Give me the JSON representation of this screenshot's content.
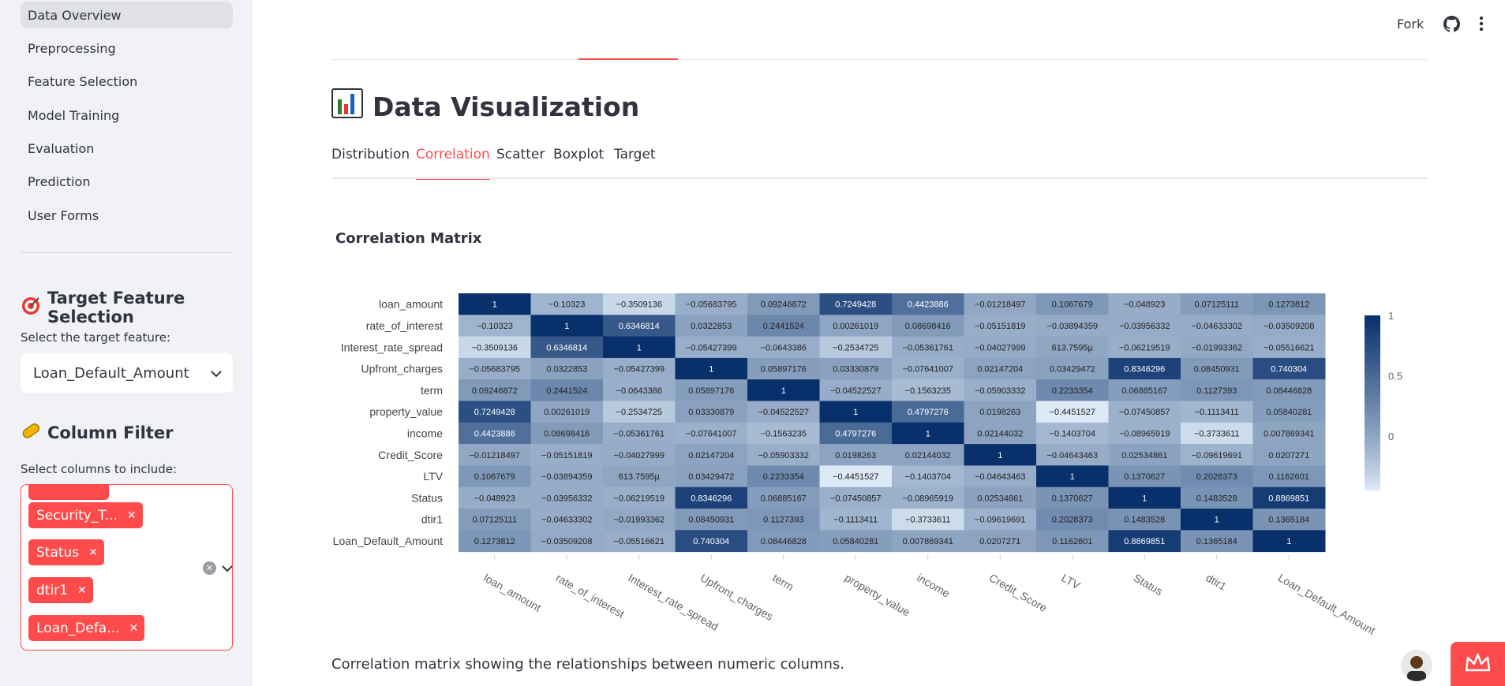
{
  "sidebar": {
    "nav": [
      {
        "label": "Data Overview",
        "active": true
      },
      {
        "label": "Preprocessing"
      },
      {
        "label": "Feature Selection"
      },
      {
        "label": "Model Training"
      },
      {
        "label": "Evaluation"
      },
      {
        "label": "Prediction"
      },
      {
        "label": "User Forms"
      }
    ],
    "target_header": "Target Feature Selection",
    "target_icon": "target-icon",
    "target_label": "Select the target feature:",
    "target_value": "Loan_Default_Amount",
    "filter_header": "Column Filter",
    "filter_icon": "pill-icon",
    "filter_label": "Select columns to include:",
    "chips": [
      "Security_T...",
      "Status",
      "dtir1",
      "Loan_Defa..."
    ]
  },
  "topbar": {
    "fork": "Fork",
    "github_icon": "github-icon",
    "menu_icon": "kebab-menu-icon"
  },
  "main": {
    "title": "Data Visualization",
    "title_icon": "bar-chart-icon",
    "tabs": [
      "Distribution",
      "Correlation",
      "Scatter",
      "Boxplot",
      "Target"
    ],
    "active_tab": "Correlation",
    "section_title": "Correlation Matrix",
    "caption": "Correlation matrix showing the relationships between numeric columns."
  },
  "chart_data": {
    "type": "heatmap",
    "title": "Correlation Matrix",
    "rows": [
      "loan_amount",
      "rate_of_interest",
      "Interest_rate_spread",
      "Upfront_charges",
      "term",
      "property_value",
      "income",
      "Credit_Score",
      "LTV",
      "Status",
      "dtir1",
      "Loan_Default_Amount"
    ],
    "cols": [
      "loan_amount",
      "rate_of_interest",
      "Interest_rate_spread",
      "Upfront_charges",
      "term",
      "property_value",
      "income",
      "Credit_Score",
      "LTV",
      "Status",
      "dtir1",
      "Loan_Default_Amount"
    ],
    "labels": [
      [
        "1",
        "−0.10323",
        "−0.3509136",
        "−0.05683795",
        "0.09246872",
        "0.7249428",
        "0.4423886",
        "−0.01218497",
        "0.1067679",
        "−0.048923",
        "0.07125111",
        "0.1273812"
      ],
      [
        "−0.10323",
        "1",
        "0.6346814",
        "0.0322853",
        "0.2441524",
        "0.00261019",
        "0.08698416",
        "−0.05151819",
        "−0.03894359",
        "−0.03956332",
        "−0.04633302",
        "−0.03509208"
      ],
      [
        "−0.3509136",
        "0.6346814",
        "1",
        "−0.05427399",
        "−0.0643386",
        "−0.2534725",
        "−0.05361761",
        "−0.04027999",
        "613.7595µ",
        "−0.06219519",
        "−0.01993362",
        "−0.05516621"
      ],
      [
        "−0.05683795",
        "0.0322853",
        "−0.05427399",
        "1",
        "0.05897176",
        "0.03330879",
        "−0.07641007",
        "0.02147204",
        "0.03429472",
        "0.8346296",
        "0.08450931",
        "0.740304"
      ],
      [
        "0.09246872",
        "0.2441524",
        "−0.0643386",
        "0.05897176",
        "1",
        "−0.04522527",
        "−0.1563235",
        "−0.05903332",
        "0.2233354",
        "0.06885167",
        "0.1127393",
        "0.08446828"
      ],
      [
        "0.7249428",
        "0.00261019",
        "−0.2534725",
        "0.03330879",
        "−0.04522527",
        "1",
        "0.4797276",
        "0.0198263",
        "−0.4451527",
        "−0.07450857",
        "−0.1113411",
        "0.05840281"
      ],
      [
        "0.4423886",
        "0.08698416",
        "−0.05361761",
        "−0.07641007",
        "−0.1563235",
        "0.4797276",
        "1",
        "0.02144032",
        "−0.1403704",
        "−0.08965919",
        "−0.3733611",
        "0.007869341"
      ],
      [
        "−0.01218497",
        "−0.05151819",
        "−0.04027999",
        "0.02147204",
        "−0.05903332",
        "0.0198263",
        "0.02144032",
        "1",
        "−0.04643463",
        "0.02534861",
        "−0.09619691",
        "0.0207271"
      ],
      [
        "0.1067679",
        "−0.03894359",
        "613.7595µ",
        "0.03429472",
        "0.2233354",
        "−0.4451527",
        "−0.1403704",
        "−0.04643463",
        "1",
        "0.1370627",
        "0.2028373",
        "0.1162601"
      ],
      [
        "−0.048923",
        "−0.03956332",
        "−0.06219519",
        "0.8346296",
        "0.06885167",
        "−0.07450857",
        "−0.08965919",
        "0.02534861",
        "0.1370627",
        "1",
        "0.1483528",
        "0.8869851"
      ],
      [
        "0.07125111",
        "−0.04633302",
        "−0.01993362",
        "0.08450931",
        "0.1127393",
        "−0.1113411",
        "−0.3733611",
        "−0.09619691",
        "0.2028373",
        "0.1483528",
        "1",
        "0.1365184"
      ],
      [
        "0.1273812",
        "−0.03509208",
        "−0.05516621",
        "0.740304",
        "0.08446828",
        "0.05840281",
        "0.007869341",
        "0.0207271",
        "0.1162601",
        "0.8869851",
        "0.1365184",
        "1"
      ]
    ],
    "colorscale": [
      "#deebf7",
      "#08306b"
    ],
    "zrange": [
      -0.45,
      1
    ],
    "colorbar_ticks": [
      "1",
      "0.5",
      "0"
    ]
  }
}
